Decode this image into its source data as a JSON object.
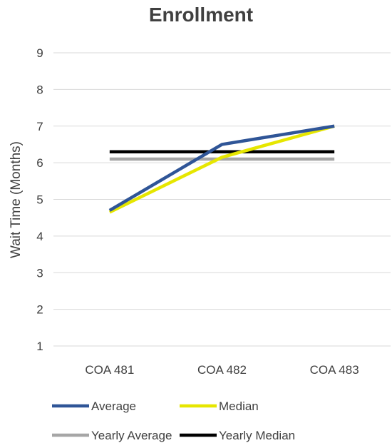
{
  "chart_data": {
    "type": "line",
    "title": "Enrollment",
    "xlabel": "",
    "ylabel": "Wait Time (Months)",
    "categories": [
      "COA 481",
      "COA 482",
      "COA 483"
    ],
    "ylim": [
      1,
      9
    ],
    "yticks": [
      1,
      2,
      3,
      4,
      5,
      6,
      7,
      8,
      9
    ],
    "grid": true,
    "legend_position": "bottom",
    "series": [
      {
        "name": "Average",
        "values": [
          4.7,
          6.5,
          7.0
        ],
        "color": "#2f5597"
      },
      {
        "name": "Median",
        "values": [
          4.65,
          6.15,
          7.0
        ],
        "color": "#e6e600"
      },
      {
        "name": "Yearly Average",
        "values": [
          6.1,
          6.1,
          6.1
        ],
        "color": "#a6a6a6"
      },
      {
        "name": "Yearly Median",
        "values": [
          6.3,
          6.3,
          6.3
        ],
        "color": "#000000"
      }
    ]
  }
}
